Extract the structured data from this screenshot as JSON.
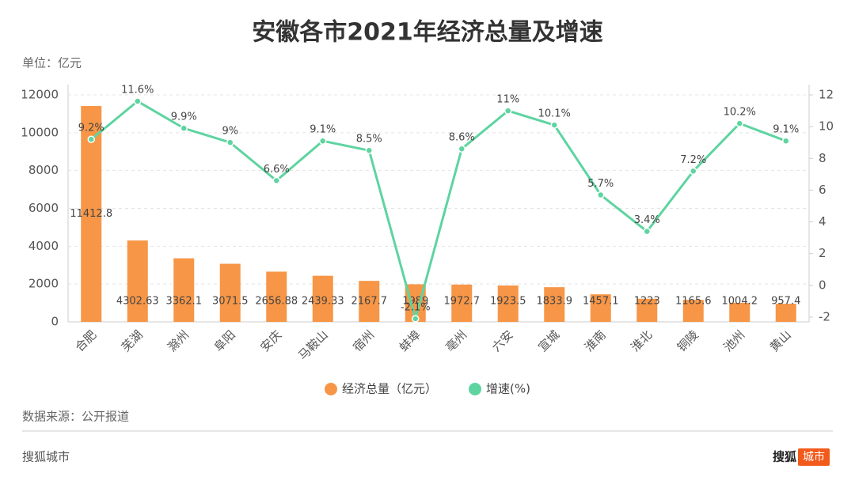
{
  "chart_data": {
    "type": "bar",
    "title": "安徽各市2021年经济总量及增速",
    "unit_label": "单位：亿元",
    "source": "数据来源：公开报道",
    "footer_left": "搜狐城市",
    "brand": "搜狐",
    "brand_badge": "城市",
    "categories": [
      "合肥",
      "芜湖",
      "滁州",
      "阜阳",
      "安庆",
      "马鞍山",
      "宿州",
      "蚌埠",
      "亳州",
      "六安",
      "宣城",
      "淮南",
      "淮北",
      "铜陵",
      "池州",
      "黄山"
    ],
    "series": [
      {
        "name": "经济总量（亿元）",
        "type": "bar",
        "color": "#f79646",
        "values": [
          11412.8,
          4302.63,
          3362.1,
          3071.5,
          2656.88,
          2439.33,
          2167.7,
          1989,
          1972.7,
          1923.5,
          1833.9,
          1457.1,
          1223,
          1165.6,
          1004.2,
          957.4
        ]
      },
      {
        "name": "增速(%)",
        "type": "line",
        "axis": "y2",
        "color": "#5ed4a0",
        "values": [
          9.2,
          11.6,
          9.9,
          9,
          6.6,
          9.1,
          8.5,
          -2.1,
          8.6,
          11,
          10.1,
          5.7,
          3.4,
          7.2,
          10.2,
          9.1
        ],
        "value_labels": [
          "9.2%",
          "11.6%",
          "9.9%",
          "9%",
          "6.6%",
          "9.1%",
          "8.5%",
          "-2.1%",
          "8.6%",
          "11%",
          "10.1%",
          "5.7%",
          "3.4%",
          "7.2%",
          "10.2%",
          "9.1%"
        ]
      }
    ],
    "ylim": [
      0,
      12000
    ],
    "yticks": [
      0,
      2000,
      4000,
      6000,
      8000,
      10000,
      12000
    ],
    "y2lim": [
      -2.3,
      12
    ],
    "y2ticks": [
      -2,
      0,
      2,
      4,
      6,
      8,
      10,
      12
    ],
    "grid": true
  }
}
